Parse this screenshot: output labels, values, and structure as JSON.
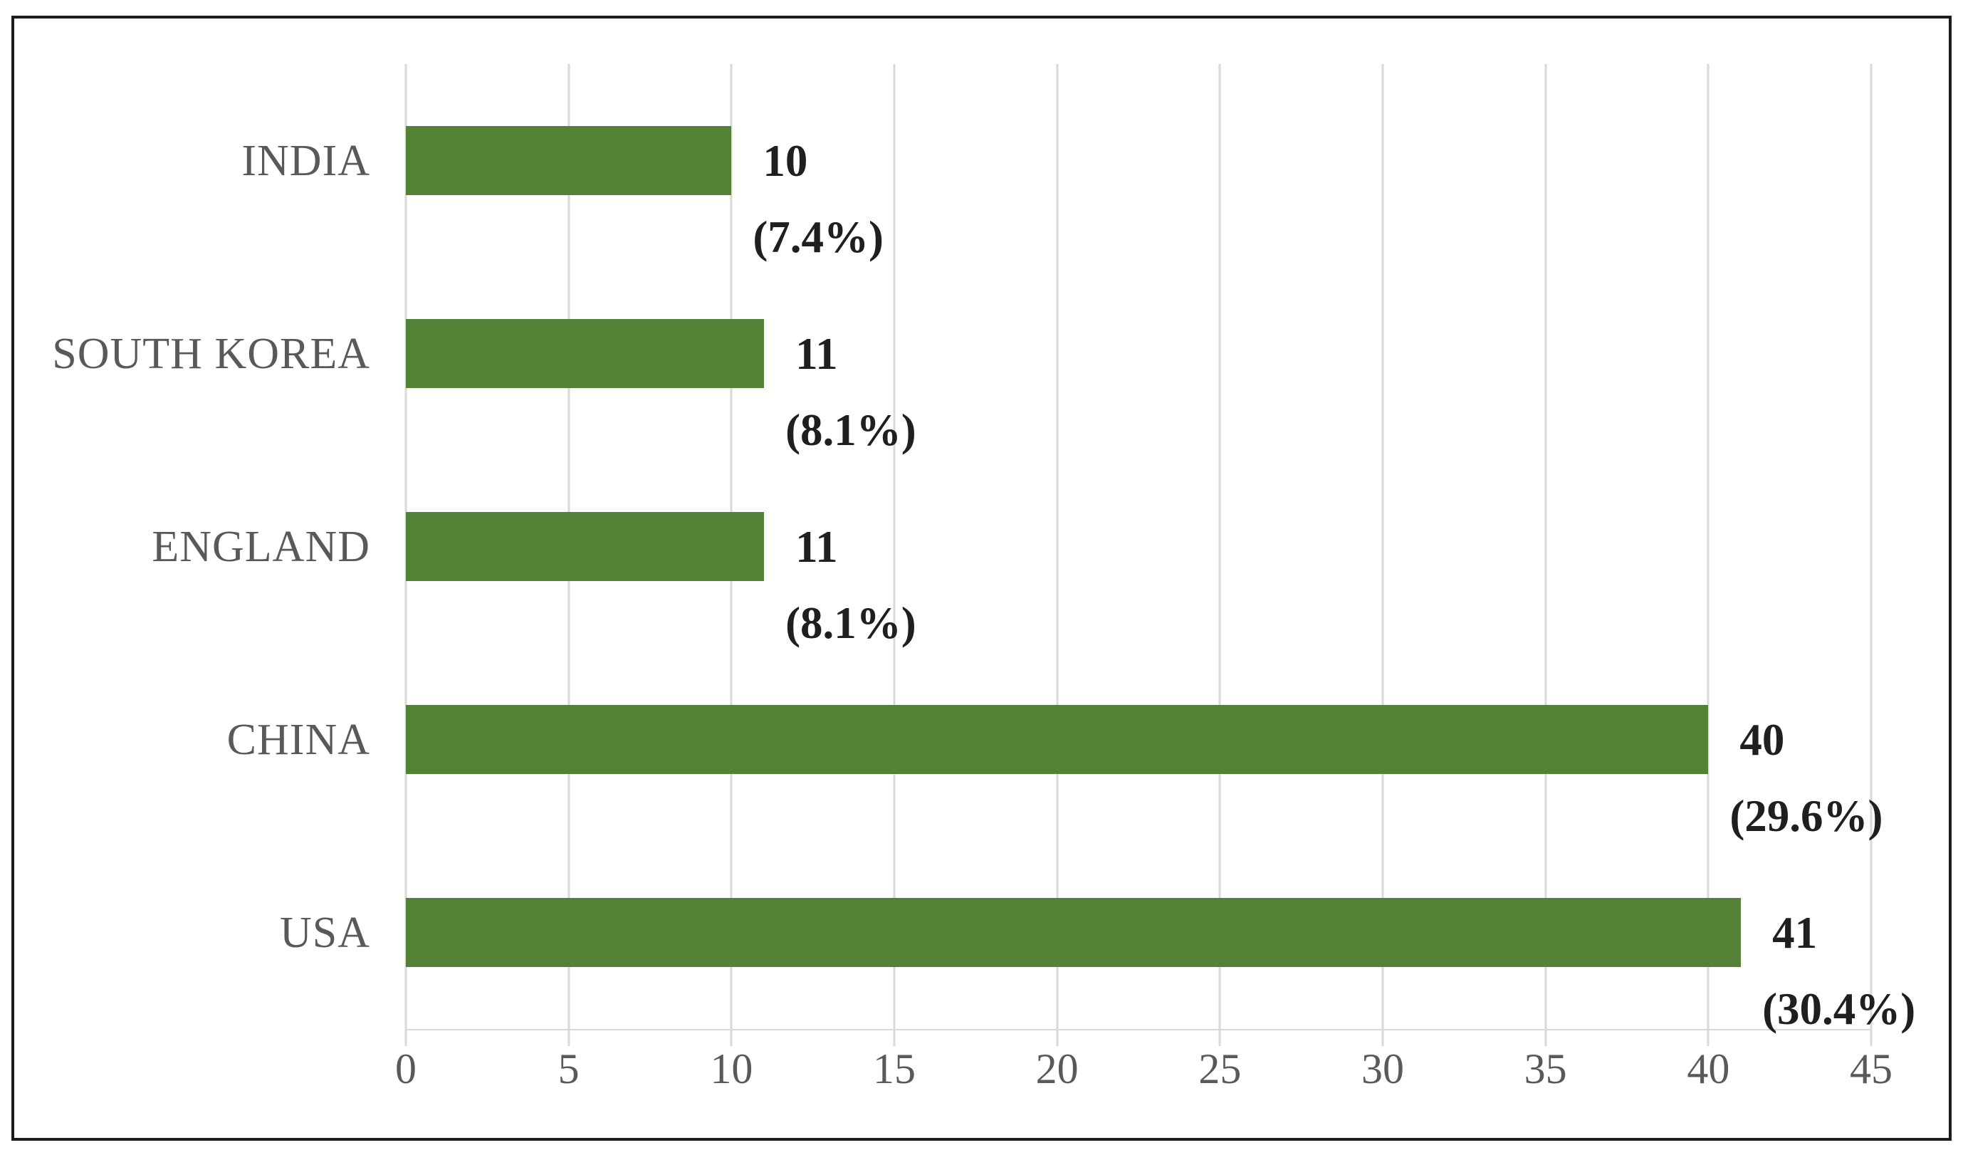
{
  "chart_data": {
    "type": "bar",
    "orientation": "horizontal",
    "title": "",
    "xlabel": "",
    "ylabel": "",
    "categories": [
      "INDIA",
      "SOUTH KOREA",
      "ENGLAND",
      "CHINA",
      "USA"
    ],
    "values": [
      10,
      11,
      11,
      40,
      41
    ],
    "percent_labels": [
      "(7.4%)",
      "(8.1%)",
      "(8.1%)",
      "(29.6%)",
      "(30.4%)"
    ],
    "value_labels": [
      "10",
      "11",
      "11",
      "40",
      "41"
    ],
    "x_ticks": [
      0,
      5,
      10,
      15,
      20,
      25,
      30,
      35,
      40,
      45
    ],
    "xlim": [
      0,
      45
    ],
    "grid": true,
    "legend": false,
    "bar_color": "#538135",
    "category_label_color": "#595959",
    "tick_label_color": "#595959",
    "data_label_color": "#1f1f1f",
    "gridline_color": "#d9d9d9",
    "border_color": "#1b1b1b"
  }
}
